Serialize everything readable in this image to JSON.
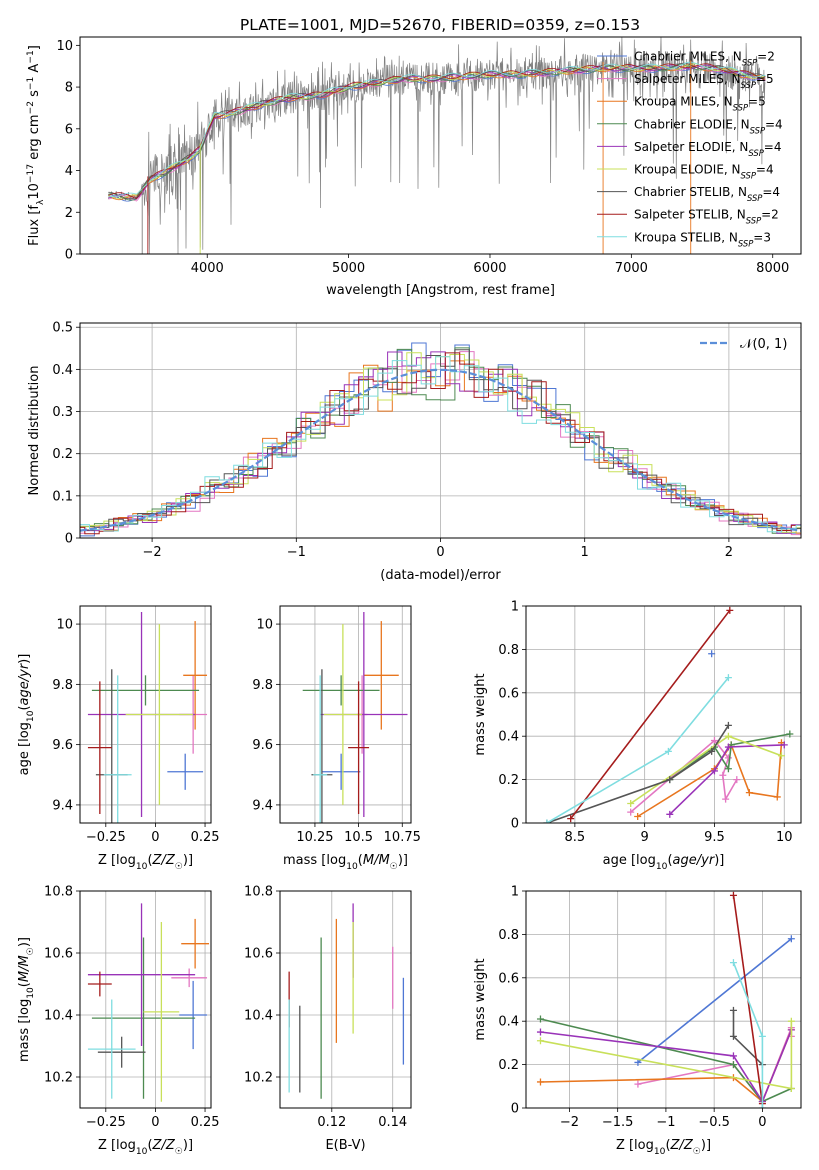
{
  "colors": {
    "chabrier_miles": "#4f77d4",
    "salpeter_miles": "#e377c2",
    "kroupa_miles": "#e8761f",
    "chabrier_elodie": "#4d8a50",
    "salpeter_elodie": "#9933b8",
    "kroupa_elodie": "#c8e05a",
    "chabrier_stelib": "#555555",
    "salpeter_stelib": "#a51c1c",
    "kroupa_stelib": "#7fdde0",
    "data_gray": "#808080",
    "normal_curve": "#5b8fd9"
  },
  "chart_data": [
    {
      "id": "spectrum",
      "type": "line",
      "title": "PLATE=1001, MJD=52670, FIBERID=0359, z=0.153",
      "xlabel": "wavelength [Angstrom, rest frame]",
      "ylabel": "Flux [f_λ10^-17 erg cm^-2 s^-1 A^-1]",
      "xlim": [
        3100,
        8200
      ],
      "ylim": [
        0,
        10.4
      ],
      "xticks": [
        4000,
        5000,
        6000,
        7000,
        8000
      ],
      "yticks": [
        0,
        2,
        4,
        6,
        8,
        10
      ],
      "legend_position": "top-right",
      "legend": [
        "Chabrier MILES, N_SSP=2",
        "Salpeter MILES, N_SSP=5",
        "Kroupa MILES, N_SSP=5",
        "Chabrier ELODIE, N_SSP=4",
        "Salpeter ELODIE, N_SSP=4",
        "Kroupa ELODIE, N_SSP=4",
        "Chabrier STELIB, N_SSP=4",
        "Salpeter STELIB, N_SSP=2",
        "Kroupa STELIB, N_SSP=3"
      ],
      "legend_sub": [
        "2",
        "5",
        "5",
        "4",
        "4",
        "4",
        "4",
        "2",
        "3"
      ],
      "model_continuum": {
        "x": [
          3300,
          3500,
          3600,
          3700,
          3850,
          3950,
          4050,
          4200,
          4400,
          4600,
          4800,
          5000,
          5200,
          5400,
          5600,
          5800,
          6000,
          6200,
          6400,
          6600,
          6800,
          7000,
          7200,
          7400,
          7600,
          7800,
          7950
        ],
        "y": [
          2.8,
          2.7,
          3.6,
          3.9,
          4.5,
          5.0,
          6.6,
          6.8,
          7.2,
          7.5,
          7.6,
          8.0,
          8.2,
          8.4,
          8.4,
          8.5,
          8.6,
          8.6,
          8.7,
          8.8,
          8.9,
          8.9,
          8.9,
          9.0,
          8.9,
          8.6,
          8.4
        ]
      }
    },
    {
      "id": "residuals",
      "type": "line",
      "xlabel": "(data-model)/error",
      "ylabel": "Normed distribution",
      "xlim": [
        -2.5,
        2.5
      ],
      "ylim": [
        0,
        0.51
      ],
      "xticks": [
        -2,
        -1,
        0,
        1,
        2
      ],
      "yticks": [
        0.0,
        0.1,
        0.2,
        0.3,
        0.4,
        0.5
      ],
      "grid": true,
      "legend_position": "top-right",
      "reference_curve": {
        "name": "N(0, 1)",
        "mean": 0,
        "sigma": 1
      }
    },
    {
      "id": "Z_vs_age",
      "type": "scatter",
      "xlabel": "Z [log10(Z/Z☉)]",
      "ylabel": "age  [log10(age/yr)]",
      "xlim": [
        -0.38,
        0.28
      ],
      "ylim": [
        9.34,
        10.06
      ],
      "xticks": [
        -0.25,
        0.0,
        0.25
      ],
      "yticks": [
        9.4,
        9.6,
        9.8,
        10.0
      ],
      "grid": true,
      "points": [
        {
          "x": 0.15,
          "y": 9.51,
          "xerr": 0.09,
          "yerr": 0.06
        },
        {
          "x": 0.19,
          "y": 9.7,
          "xerr": 0.07,
          "yerr": 0.13
        },
        {
          "x": 0.2,
          "y": 9.83,
          "xerr": 0.06,
          "yerr": 0.18
        },
        {
          "x": -0.05,
          "y": 9.78,
          "xerr": 0.27,
          "yerr": 0.05
        },
        {
          "x": -0.07,
          "y": 9.7,
          "xerr": 0.27,
          "yerr": 0.34
        },
        {
          "x": 0.02,
          "y": 9.7,
          "xerr": 0.17,
          "yerr": 0.3
        },
        {
          "x": -0.22,
          "y": 9.5,
          "xerr": 0.08,
          "yerr": 0.35
        },
        {
          "x": -0.28,
          "y": 9.59,
          "xerr": 0.06,
          "yerr": 0.22
        },
        {
          "x": -0.19,
          "y": 9.5,
          "xerr": 0.07,
          "yerr": 0.33
        }
      ]
    },
    {
      "id": "mass_vs_age",
      "type": "scatter",
      "xlabel": "mass [log10(M/M☉)]",
      "ylabel": "",
      "xlim": [
        10.05,
        10.8
      ],
      "ylim": [
        9.34,
        10.06
      ],
      "xticks": [
        10.25,
        10.5,
        10.75
      ],
      "yticks": [
        9.4,
        9.6,
        9.8,
        10.0
      ],
      "grid": true,
      "points": [
        {
          "x": 10.4,
          "y": 9.51,
          "xerr": 0.11,
          "yerr": 0.06
        },
        {
          "x": 10.52,
          "y": 9.7,
          "xerr": 0.03,
          "yerr": 0.13
        },
        {
          "x": 10.63,
          "y": 9.83,
          "xerr": 0.1,
          "yerr": 0.18
        },
        {
          "x": 10.4,
          "y": 9.78,
          "xerr": 0.22,
          "yerr": 0.05
        },
        {
          "x": 10.53,
          "y": 9.7,
          "xerr": 0.25,
          "yerr": 0.34
        },
        {
          "x": 10.41,
          "y": 9.7,
          "xerr": 0.11,
          "yerr": 0.3
        },
        {
          "x": 10.29,
          "y": 9.5,
          "xerr": 0.06,
          "yerr": 0.35
        },
        {
          "x": 10.5,
          "y": 9.59,
          "xerr": 0.06,
          "yerr": 0.22
        },
        {
          "x": 10.28,
          "y": 9.5,
          "xerr": 0.04,
          "yerr": 0.33
        }
      ]
    },
    {
      "id": "age_vs_weight",
      "type": "line",
      "xlabel": "age  [log10(age/yr)]",
      "ylabel": "mass weight",
      "xlim": [
        8.15,
        10.12
      ],
      "ylim": [
        0,
        1.0
      ],
      "xticks": [
        8.5,
        9.0,
        9.5,
        10.0
      ],
      "yticks": [
        0.0,
        0.2,
        0.4,
        0.6,
        0.8,
        1.0
      ],
      "grid": true,
      "series": [
        {
          "x": [
            9.48
          ],
          "y": [
            0.78
          ]
        },
        {
          "x": [
            8.9,
            9.5,
            9.6,
            9.56,
            9.58,
            9.66
          ],
          "y": [
            0.05,
            0.38,
            0.3,
            0.22,
            0.11,
            0.2
          ]
        },
        {
          "x": [
            8.95,
            9.5,
            9.62,
            9.75,
            9.95,
            9.98
          ],
          "y": [
            0.03,
            0.25,
            0.36,
            0.14,
            0.12,
            0.37
          ]
        },
        {
          "x": [
            9.18,
            9.5,
            9.6,
            9.62,
            10.04
          ],
          "y": [
            0.2,
            0.35,
            0.25,
            0.36,
            0.41
          ]
        },
        {
          "x": [
            9.18,
            9.5,
            9.6,
            10.0
          ],
          "y": [
            0.04,
            0.24,
            0.35,
            0.36
          ]
        },
        {
          "x": [
            8.9,
            9.6,
            9.98
          ],
          "y": [
            0.09,
            0.4,
            0.31
          ]
        },
        {
          "x": [
            8.3,
            9.18,
            9.48,
            9.6
          ],
          "y": [
            0.0,
            0.2,
            0.33,
            0.45
          ]
        },
        {
          "x": [
            8.47,
            9.61
          ],
          "y": [
            0.02,
            0.98
          ]
        },
        {
          "x": [
            8.3,
            9.17,
            9.6
          ],
          "y": [
            0.0,
            0.33,
            0.67
          ]
        }
      ]
    },
    {
      "id": "Z_vs_mass",
      "type": "scatter",
      "xlabel": "Z [log10(Z/Z☉)]",
      "ylabel": "mass [log10(M/M☉)]",
      "xlim": [
        -0.38,
        0.28
      ],
      "ylim": [
        10.1,
        10.8
      ],
      "xticks": [
        -0.25,
        0.0,
        0.25
      ],
      "yticks": [
        10.2,
        10.4,
        10.6,
        10.8
      ],
      "grid": true,
      "points": [
        {
          "x": 0.19,
          "y": 10.4,
          "xerr": 0.07,
          "yerr": 0.11
        },
        {
          "x": 0.17,
          "y": 10.52,
          "xerr": 0.09,
          "yerr": 0.03
        },
        {
          "x": 0.2,
          "y": 10.63,
          "xerr": 0.07,
          "yerr": 0.08
        },
        {
          "x": -0.06,
          "y": 10.39,
          "xerr": 0.26,
          "yerr": 0.26
        },
        {
          "x": -0.07,
          "y": 10.53,
          "xerr": 0.27,
          "yerr": 0.23
        },
        {
          "x": 0.03,
          "y": 10.41,
          "xerr": 0.09,
          "yerr": 0.29
        },
        {
          "x": -0.17,
          "y": 10.28,
          "xerr": 0.12,
          "yerr": 0.05
        },
        {
          "x": -0.28,
          "y": 10.5,
          "xerr": 0.06,
          "yerr": 0.04
        },
        {
          "x": -0.22,
          "y": 10.29,
          "xerr": 0.12,
          "yerr": 0.16
        }
      ]
    },
    {
      "id": "ebv_vs_mass",
      "type": "scatter",
      "xlabel": "E(B-V)",
      "ylabel": "",
      "xlim": [
        0.103,
        0.146
      ],
      "ylim": [
        10.1,
        10.8
      ],
      "xticks": [
        0.12,
        0.14
      ],
      "yticks": [
        10.2,
        10.4,
        10.6,
        10.8
      ],
      "grid": true,
      "points": [
        {
          "x": 0.1435,
          "y": 10.38,
          "yerr": 0.14
        },
        {
          "x": 0.14,
          "y": 10.52,
          "yerr": 0.1
        },
        {
          "x": 0.1215,
          "y": 10.51,
          "yerr": 0.2
        },
        {
          "x": 0.1165,
          "y": 10.39,
          "yerr": 0.26
        },
        {
          "x": 0.127,
          "y": 10.64,
          "yerr": 0.12
        },
        {
          "x": 0.127,
          "y": 10.52,
          "yerr": 0.18
        },
        {
          "x": 0.1095,
          "y": 10.29,
          "yerr": 0.14
        },
        {
          "x": 0.106,
          "y": 10.45,
          "yerr": 0.09
        },
        {
          "x": 0.106,
          "y": 10.3,
          "yerr": 0.15
        }
      ]
    },
    {
      "id": "Z_vs_weight",
      "type": "line",
      "xlabel": "Z [log10(Z/Z☉)]",
      "ylabel": "mass weight",
      "xlim": [
        -2.45,
        0.4
      ],
      "ylim": [
        0,
        1.0
      ],
      "xticks": [
        -2.0,
        -1.5,
        -1.0,
        -0.5,
        0.0
      ],
      "yticks": [
        0.0,
        0.2,
        0.4,
        0.6,
        0.8,
        1.0
      ],
      "grid": true,
      "series": [
        {
          "x": [
            -1.29,
            0.3
          ],
          "y": [
            0.21,
            0.78
          ]
        },
        {
          "x": [
            -1.29,
            -0.3,
            0.0,
            0.3,
            0.3
          ],
          "y": [
            0.11,
            0.2,
            0.03,
            0.37,
            0.33
          ]
        },
        {
          "x": [
            -2.3,
            -0.3,
            0.0,
            0.3
          ],
          "y": [
            0.12,
            0.14,
            0.03,
            0.36
          ]
        },
        {
          "x": [
            -2.3,
            -0.3,
            0.0,
            0.3
          ],
          "y": [
            0.41,
            0.2,
            0.03,
            0.09
          ]
        },
        {
          "x": [
            -2.3,
            -0.3,
            0.0,
            0.3
          ],
          "y": [
            0.35,
            0.24,
            0.03,
            0.36
          ]
        },
        {
          "x": [
            -2.3,
            0.3,
            0.3
          ],
          "y": [
            0.31,
            0.09,
            0.4
          ]
        },
        {
          "x": [
            -0.3,
            -0.3,
            0.0
          ],
          "y": [
            0.45,
            0.33,
            0.2
          ]
        },
        {
          "x": [
            -0.3,
            0.0
          ],
          "y": [
            0.98,
            0.02
          ]
        },
        {
          "x": [
            -0.3,
            0.0,
            0.0
          ],
          "y": [
            0.67,
            0.33,
            0.0
          ]
        }
      ]
    }
  ]
}
